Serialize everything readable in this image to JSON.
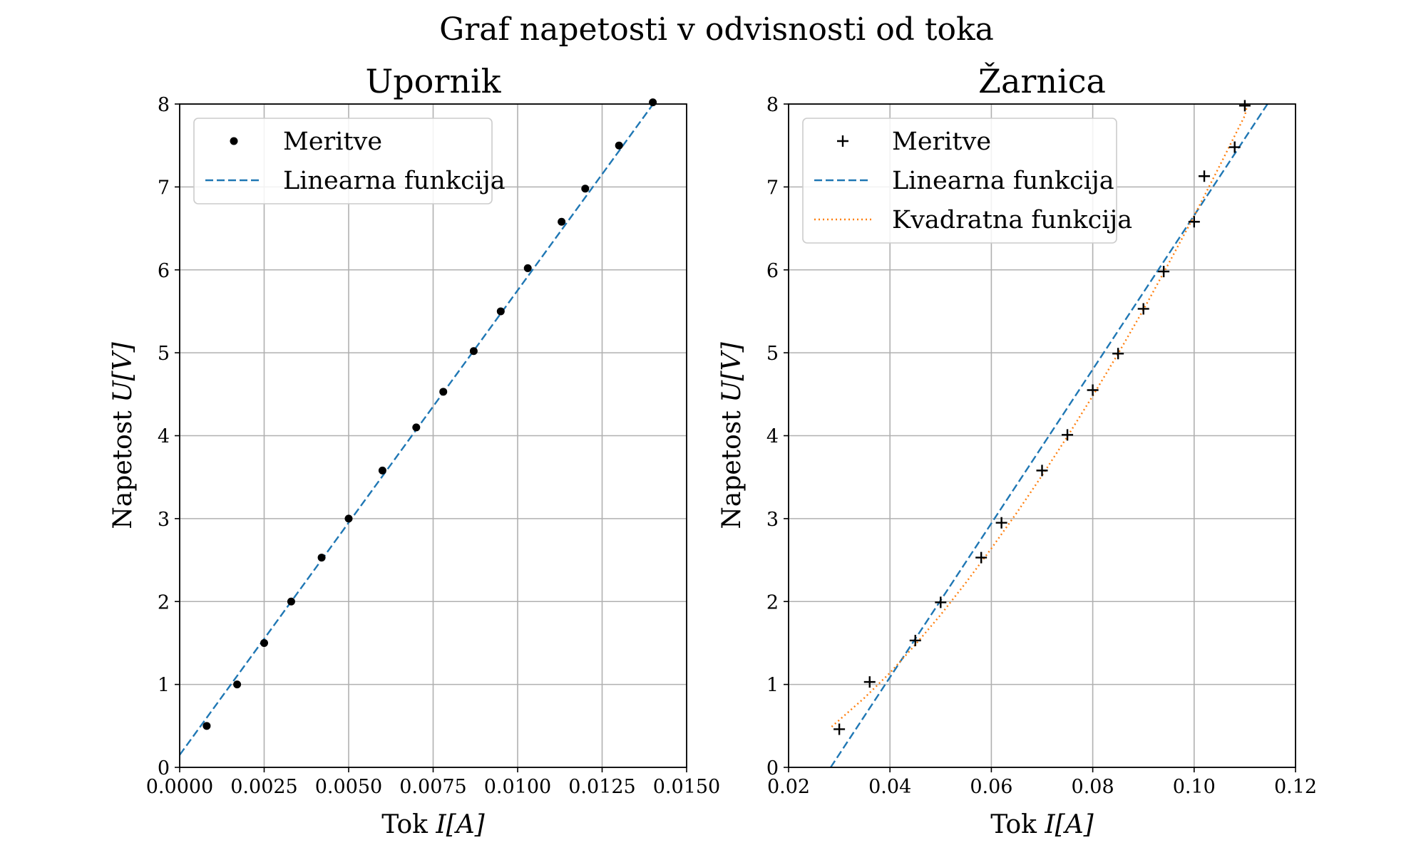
{
  "figure_title": "Graf napetosti v odvisnosti od toka",
  "chart_data": [
    {
      "type": "scatter",
      "title": "Upornik",
      "xlabel_text": "Tok ",
      "xlabel_math": "I[A]",
      "ylabel_text": "Napetost ",
      "ylabel_math": "U[V]",
      "xlim": [
        0,
        0.015
      ],
      "ylim": [
        0,
        8
      ],
      "xticks": [
        0.0,
        0.0025,
        0.005,
        0.0075,
        0.01,
        0.0125,
        0.015
      ],
      "xtick_labels": [
        "0.0000",
        "0.0025",
        "0.0050",
        "0.0075",
        "0.0100",
        "0.0125",
        "0.0150"
      ],
      "yticks": [
        0,
        1,
        2,
        3,
        4,
        5,
        6,
        7,
        8
      ],
      "ytick_labels": [
        "0",
        "1",
        "2",
        "3",
        "4",
        "5",
        "6",
        "7",
        "8"
      ],
      "grid": true,
      "legend_position": "top-left",
      "series": [
        {
          "name": "Meritve",
          "kind": "points",
          "marker": "dot",
          "color": "#000000",
          "x": [
            0.0008,
            0.0017,
            0.0025,
            0.0033,
            0.0042,
            0.005,
            0.006,
            0.007,
            0.0078,
            0.0087,
            0.0095,
            0.0103,
            0.0113,
            0.012,
            0.013,
            0.014
          ],
          "y": [
            0.5,
            1.0,
            1.5,
            2.0,
            2.53,
            3.0,
            3.58,
            4.1,
            4.53,
            5.02,
            5.5,
            6.02,
            6.58,
            6.98,
            7.5,
            8.02
          ]
        },
        {
          "name": "Linearna funkcija",
          "kind": "line",
          "style": "dashed",
          "color": "#1f77b4",
          "x": [
            0.0,
            0.0141
          ],
          "y": [
            0.15,
            8.05
          ]
        }
      ]
    },
    {
      "type": "scatter",
      "title": "Žarnica",
      "xlabel_text": "Tok ",
      "xlabel_math": "I[A]",
      "ylabel_text": "Napetost ",
      "ylabel_math": "U[V]",
      "xlim": [
        0.02,
        0.12
      ],
      "ylim": [
        0,
        8
      ],
      "xticks": [
        0.02,
        0.04,
        0.06,
        0.08,
        0.1,
        0.12
      ],
      "xtick_labels": [
        "0.02",
        "0.04",
        "0.06",
        "0.08",
        "0.10",
        "0.12"
      ],
      "yticks": [
        0,
        1,
        2,
        3,
        4,
        5,
        6,
        7,
        8
      ],
      "ytick_labels": [
        "0",
        "1",
        "2",
        "3",
        "4",
        "5",
        "6",
        "7",
        "8"
      ],
      "grid": true,
      "legend_position": "top-left",
      "series": [
        {
          "name": "Meritve",
          "kind": "points",
          "marker": "plus",
          "color": "#000000",
          "x": [
            0.03,
            0.036,
            0.045,
            0.05,
            0.058,
            0.062,
            0.07,
            0.075,
            0.08,
            0.085,
            0.09,
            0.094,
            0.1,
            0.102,
            0.108,
            0.11
          ],
          "y": [
            0.46,
            1.03,
            1.53,
            1.99,
            2.53,
            2.95,
            3.58,
            4.01,
            4.55,
            4.99,
            5.53,
            5.98,
            6.58,
            7.13,
            7.48,
            7.98
          ]
        },
        {
          "name": "Linearna funkcija",
          "kind": "line",
          "style": "dashed",
          "color": "#1f77b4",
          "x": [
            0.0283,
            0.115
          ],
          "y": [
            0.0,
            8.05
          ]
        },
        {
          "name": "Kvadratna funkcija",
          "kind": "line",
          "style": "dotted",
          "color": "#ff7f0e",
          "x": [
            0.0285,
            0.035,
            0.04,
            0.045,
            0.05,
            0.055,
            0.06,
            0.065,
            0.07,
            0.075,
            0.08,
            0.085,
            0.09,
            0.095,
            0.1,
            0.105,
            0.11,
            0.1105
          ],
          "y": [
            0.49,
            0.84,
            1.14,
            1.48,
            1.84,
            2.23,
            2.64,
            3.07,
            3.52,
            3.99,
            4.48,
            4.99,
            5.52,
            6.08,
            6.65,
            7.25,
            7.86,
            8.0
          ]
        }
      ]
    }
  ]
}
